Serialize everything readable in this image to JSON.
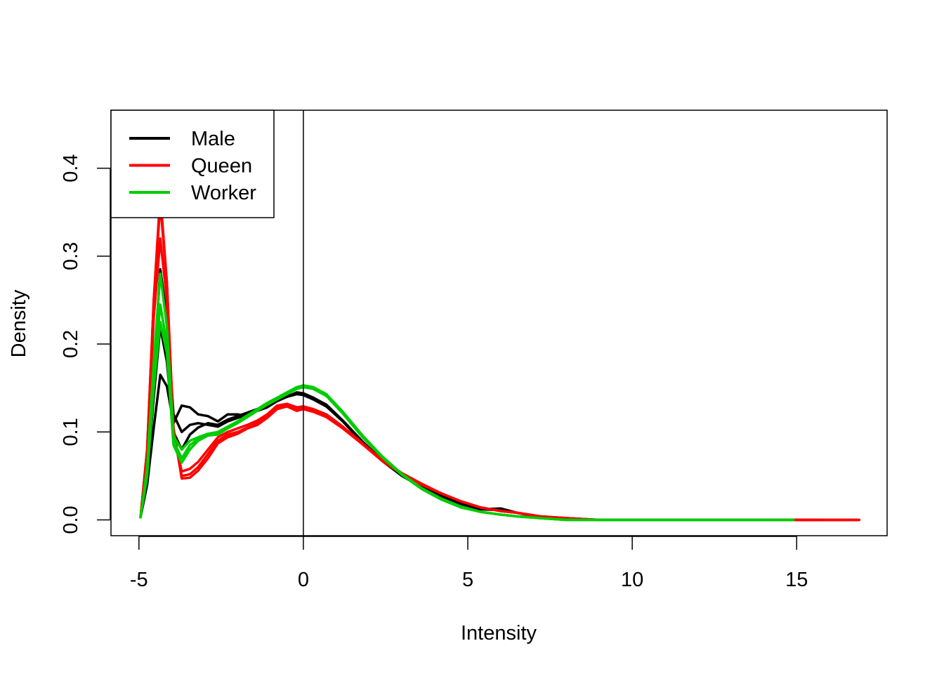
{
  "chart_data": {
    "type": "line",
    "title": "",
    "xlabel": "Intensity",
    "ylabel": "Density",
    "xlim": [
      -5.85,
      17.75
    ],
    "ylim": [
      -0.018,
      0.466
    ],
    "xticks": [
      -5,
      0,
      5,
      10,
      15
    ],
    "xtick_labels": [
      "-5",
      "0",
      "5",
      "10",
      "15"
    ],
    "yticks": [
      0.0,
      0.1,
      0.2,
      0.3,
      0.4
    ],
    "ytick_labels": [
      "0.0",
      "0.1",
      "0.2",
      "0.3",
      "0.4"
    ],
    "vline": 0,
    "grid": false,
    "legend": {
      "position": "top-left",
      "entries": [
        {
          "label": "Male",
          "color": "#000000"
        },
        {
          "label": "Queen",
          "color": "#FF0000"
        },
        {
          "label": "Worker",
          "color": "#00CC00"
        }
      ]
    },
    "series": [
      {
        "group": "Male",
        "color": "#000000",
        "x": [
          -4.95,
          -4.75,
          -4.55,
          -4.35,
          -4.15,
          -3.95,
          -3.7,
          -3.45,
          -3.2,
          -2.9,
          -2.6,
          -2.3,
          -2.0,
          -1.7,
          -1.4,
          -1.1,
          -0.8,
          -0.5,
          -0.2,
          0.0,
          0.3,
          0.7,
          1.2,
          1.8,
          2.4,
          3.0,
          3.6,
          4.2,
          4.8,
          5.4,
          6.0,
          6.5,
          7.2,
          8.0,
          9.0,
          10.0,
          12.0,
          14.0,
          15.8
        ],
        "y": [
          0.003,
          0.04,
          0.105,
          0.165,
          0.152,
          0.11,
          0.13,
          0.128,
          0.12,
          0.118,
          0.112,
          0.12,
          0.12,
          0.118,
          0.126,
          0.13,
          0.138,
          0.141,
          0.144,
          0.143,
          0.138,
          0.13,
          0.112,
          0.088,
          0.067,
          0.05,
          0.037,
          0.026,
          0.018,
          0.012,
          0.013,
          0.008,
          0.003,
          0.001,
          0.0,
          0.0,
          0.0,
          0.0,
          0.0
        ]
      },
      {
        "group": "Male",
        "color": "#000000",
        "x": [
          -4.95,
          -4.75,
          -4.55,
          -4.35,
          -4.15,
          -3.95,
          -3.7,
          -3.45,
          -3.2,
          -2.9,
          -2.6,
          -2.3,
          -2.0,
          -1.7,
          -1.4,
          -1.1,
          -0.8,
          -0.5,
          -0.2,
          0.0,
          0.3,
          0.7,
          1.2,
          1.8,
          2.4,
          3.0,
          3.6,
          4.2,
          4.8,
          5.4,
          6.0,
          6.5,
          7.2,
          8.0,
          9.0,
          10.0,
          12.0,
          14.0,
          15.5
        ],
        "y": [
          0.003,
          0.06,
          0.17,
          0.285,
          0.23,
          0.12,
          0.1,
          0.108,
          0.11,
          0.108,
          0.106,
          0.112,
          0.116,
          0.12,
          0.124,
          0.128,
          0.135,
          0.14,
          0.145,
          0.144,
          0.139,
          0.131,
          0.113,
          0.089,
          0.068,
          0.051,
          0.038,
          0.027,
          0.018,
          0.012,
          0.012,
          0.008,
          0.003,
          0.001,
          0.0,
          0.0,
          0.0,
          0.0,
          0.0
        ]
      },
      {
        "group": "Male",
        "color": "#000000",
        "x": [
          -4.95,
          -4.75,
          -4.55,
          -4.35,
          -4.15,
          -3.95,
          -3.7,
          -3.45,
          -3.2,
          -2.9,
          -2.6,
          -2.3,
          -2.0,
          -1.7,
          -1.4,
          -1.1,
          -0.8,
          -0.5,
          -0.2,
          0.0,
          0.3,
          0.7,
          1.2,
          1.8,
          2.4,
          3.0,
          3.6,
          4.2,
          4.8,
          5.4,
          6.0,
          6.5,
          7.2,
          8.0,
          9.0,
          10.0,
          12.0,
          14.0,
          15.6
        ],
        "y": [
          0.003,
          0.05,
          0.14,
          0.22,
          0.18,
          0.1,
          0.08,
          0.097,
          0.105,
          0.11,
          0.108,
          0.114,
          0.118,
          0.122,
          0.126,
          0.13,
          0.136,
          0.14,
          0.143,
          0.142,
          0.137,
          0.129,
          0.112,
          0.088,
          0.067,
          0.05,
          0.037,
          0.026,
          0.018,
          0.012,
          0.011,
          0.008,
          0.003,
          0.001,
          0.0,
          0.0,
          0.0,
          0.0,
          0.0
        ]
      },
      {
        "group": "Queen",
        "color": "#FF0000",
        "x": [
          -4.95,
          -4.75,
          -4.55,
          -4.35,
          -4.15,
          -3.95,
          -3.7,
          -3.45,
          -3.2,
          -2.9,
          -2.6,
          -2.3,
          -2.0,
          -1.7,
          -1.4,
          -1.1,
          -0.8,
          -0.5,
          -0.2,
          0.0,
          0.3,
          0.7,
          1.2,
          1.8,
          2.4,
          3.0,
          3.6,
          4.2,
          4.8,
          5.4,
          6.0,
          6.5,
          7.2,
          8.0,
          9.0,
          10.0,
          12.0,
          14.0,
          16.0,
          16.9
        ],
        "y": [
          0.003,
          0.08,
          0.25,
          0.37,
          0.27,
          0.1,
          0.05,
          0.052,
          0.06,
          0.075,
          0.09,
          0.097,
          0.1,
          0.105,
          0.11,
          0.118,
          0.128,
          0.13,
          0.126,
          0.127,
          0.124,
          0.118,
          0.105,
          0.086,
          0.067,
          0.052,
          0.04,
          0.03,
          0.021,
          0.014,
          0.01,
          0.008,
          0.004,
          0.002,
          0.0,
          0.0,
          0.0,
          0.0,
          0.0,
          0.0
        ]
      },
      {
        "group": "Queen",
        "color": "#FF0000",
        "x": [
          -4.95,
          -4.75,
          -4.55,
          -4.35,
          -4.15,
          -3.95,
          -3.7,
          -3.45,
          -3.2,
          -2.9,
          -2.6,
          -2.3,
          -2.0,
          -1.7,
          -1.4,
          -1.1,
          -0.8,
          -0.5,
          -0.2,
          0.0,
          0.3,
          0.7,
          1.2,
          1.8,
          2.4,
          3.0,
          3.6,
          4.2,
          4.8,
          5.4,
          6.0,
          6.5,
          7.2,
          8.0,
          9.0,
          10.0,
          12.0,
          14.0,
          16.0,
          16.9
        ],
        "y": [
          0.003,
          0.075,
          0.23,
          0.32,
          0.25,
          0.1,
          0.055,
          0.058,
          0.066,
          0.08,
          0.094,
          0.1,
          0.104,
          0.108,
          0.113,
          0.12,
          0.13,
          0.132,
          0.128,
          0.129,
          0.126,
          0.12,
          0.106,
          0.087,
          0.068,
          0.053,
          0.041,
          0.03,
          0.021,
          0.014,
          0.01,
          0.008,
          0.004,
          0.002,
          0.0,
          0.0,
          0.0,
          0.0,
          0.0,
          0.0
        ]
      },
      {
        "group": "Queen",
        "color": "#FF0000",
        "x": [
          -4.95,
          -4.75,
          -4.55,
          -4.35,
          -4.15,
          -3.95,
          -3.7,
          -3.45,
          -3.2,
          -2.9,
          -2.6,
          -2.3,
          -2.0,
          -1.7,
          -1.4,
          -1.1,
          -0.8,
          -0.5,
          -0.2,
          0.0,
          0.3,
          0.7,
          1.2,
          1.8,
          2.4,
          3.0,
          3.6,
          4.2,
          4.8,
          5.4,
          6.0,
          6.5,
          7.2,
          8.0,
          9.0,
          10.0,
          12.0,
          14.0,
          16.0,
          16.9
        ],
        "y": [
          0.003,
          0.08,
          0.25,
          0.36,
          0.27,
          0.105,
          0.047,
          0.048,
          0.056,
          0.07,
          0.087,
          0.094,
          0.098,
          0.104,
          0.108,
          0.116,
          0.126,
          0.129,
          0.124,
          0.126,
          0.123,
          0.117,
          0.104,
          0.086,
          0.067,
          0.052,
          0.04,
          0.03,
          0.021,
          0.014,
          0.01,
          0.008,
          0.004,
          0.002,
          0.0,
          0.0,
          0.0,
          0.0,
          0.0,
          0.0
        ]
      },
      {
        "group": "Worker",
        "color": "#00CC00",
        "x": [
          -4.95,
          -4.75,
          -4.55,
          -4.35,
          -4.15,
          -3.95,
          -3.7,
          -3.45,
          -3.2,
          -2.9,
          -2.6,
          -2.3,
          -2.0,
          -1.7,
          -1.4,
          -1.1,
          -0.8,
          -0.5,
          -0.2,
          0.0,
          0.3,
          0.7,
          1.2,
          1.8,
          2.4,
          3.0,
          3.6,
          4.2,
          4.8,
          5.4,
          6.0,
          6.5,
          7.2,
          8.0,
          9.0,
          10.0,
          12.0,
          14.0,
          14.9
        ],
        "y": [
          0.003,
          0.06,
          0.18,
          0.28,
          0.22,
          0.095,
          0.08,
          0.09,
          0.094,
          0.098,
          0.1,
          0.106,
          0.112,
          0.118,
          0.125,
          0.132,
          0.138,
          0.144,
          0.15,
          0.152,
          0.15,
          0.142,
          0.122,
          0.095,
          0.072,
          0.052,
          0.036,
          0.024,
          0.015,
          0.009,
          0.006,
          0.004,
          0.002,
          0.0,
          0.0,
          0.0,
          0.0,
          0.0,
          0.0
        ]
      },
      {
        "group": "Worker",
        "color": "#00CC00",
        "x": [
          -4.95,
          -4.75,
          -4.55,
          -4.35,
          -4.15,
          -3.95,
          -3.7,
          -3.45,
          -3.2,
          -2.9,
          -2.6,
          -2.3,
          -2.0,
          -1.7,
          -1.4,
          -1.1,
          -0.8,
          -0.5,
          -0.2,
          0.0,
          0.3,
          0.7,
          1.2,
          1.8,
          2.4,
          3.0,
          3.6,
          4.2,
          4.8,
          5.4,
          6.0,
          6.5,
          7.2,
          8.0,
          9.0,
          10.0,
          12.0,
          14.0,
          14.9
        ],
        "y": [
          0.003,
          0.055,
          0.16,
          0.245,
          0.2,
          0.09,
          0.07,
          0.085,
          0.092,
          0.097,
          0.098,
          0.105,
          0.112,
          0.119,
          0.126,
          0.133,
          0.139,
          0.145,
          0.151,
          0.153,
          0.151,
          0.143,
          0.123,
          0.096,
          0.072,
          0.052,
          0.036,
          0.024,
          0.015,
          0.009,
          0.006,
          0.004,
          0.002,
          0.0,
          0.0,
          0.0,
          0.0,
          0.0,
          0.0
        ]
      },
      {
        "group": "Worker",
        "color": "#00CC00",
        "x": [
          -4.95,
          -4.75,
          -4.55,
          -4.35,
          -4.15,
          -3.95,
          -3.7,
          -3.45,
          -3.2,
          -2.9,
          -2.6,
          -2.3,
          -2.0,
          -1.7,
          -1.4,
          -1.1,
          -0.8,
          -0.5,
          -0.2,
          0.0,
          0.3,
          0.7,
          1.2,
          1.8,
          2.4,
          3.0,
          3.6,
          4.2,
          4.8,
          5.4,
          6.0,
          6.5,
          7.2,
          8.0,
          9.0,
          10.0,
          12.0,
          14.0,
          14.9
        ],
        "y": [
          0.003,
          0.05,
          0.15,
          0.225,
          0.19,
          0.085,
          0.065,
          0.08,
          0.09,
          0.096,
          0.097,
          0.104,
          0.11,
          0.117,
          0.124,
          0.131,
          0.137,
          0.143,
          0.149,
          0.151,
          0.149,
          0.141,
          0.121,
          0.094,
          0.071,
          0.051,
          0.035,
          0.023,
          0.014,
          0.009,
          0.006,
          0.004,
          0.002,
          0.0,
          0.0,
          0.0,
          0.0,
          0.0,
          0.0
        ]
      }
    ]
  }
}
